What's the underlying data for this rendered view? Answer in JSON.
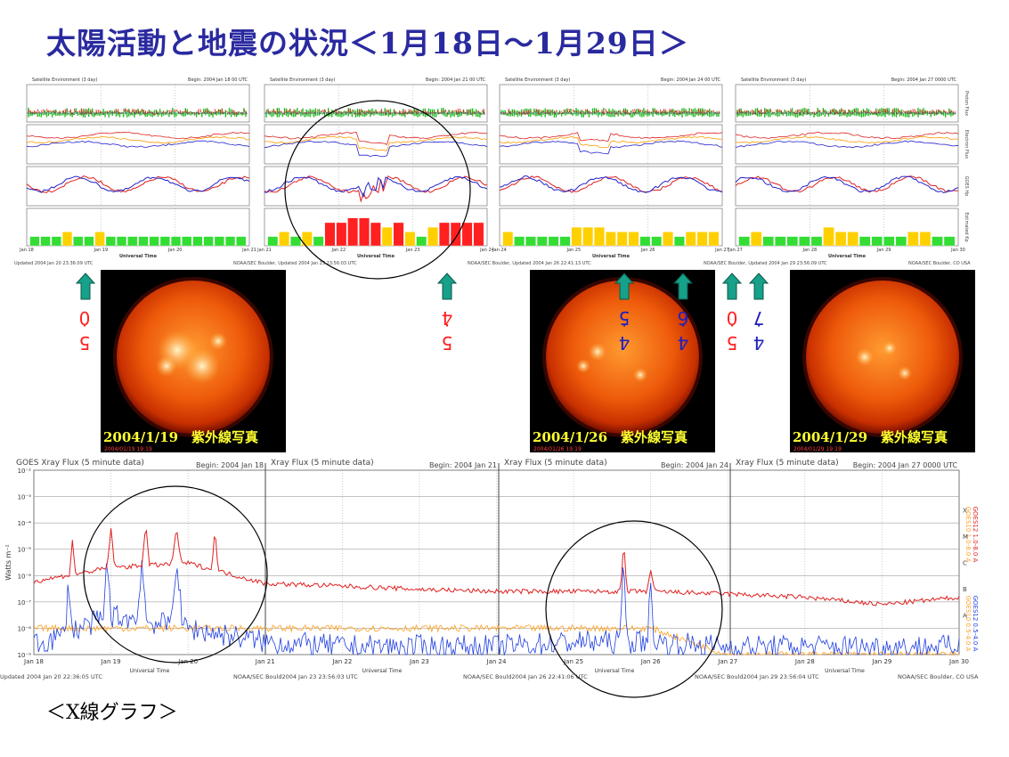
{
  "title": "太陽活動と地震の状況＜1月18日～1月29日＞",
  "xray_section_label": "＜X線グラフ＞",
  "sat_panels": [
    {
      "header_left": "Satellite Environment (3 day)",
      "header_right": "Begin: 2004 Jan 18 00 UTC",
      "days": [
        "Jan 18",
        "Jan 19",
        "Jan 20",
        "Jan 21"
      ],
      "kp": [
        2,
        2,
        2,
        3,
        2,
        2,
        3,
        2,
        2,
        2,
        2,
        2,
        2,
        2,
        2,
        2,
        2,
        2,
        2,
        2
      ]
    },
    {
      "header_left": "Satellite Environment (3 day)",
      "header_right": "Begin: 2004 Jan 21 00 UTC",
      "days": [
        "Jan 21",
        "Jan 22",
        "Jan 23",
        "Jan 24"
      ],
      "kp": [
        2,
        3,
        2,
        3,
        2,
        5,
        5,
        6,
        6,
        5,
        4,
        5,
        3,
        2,
        4,
        5,
        5,
        5,
        5
      ]
    },
    {
      "header_left": "Satellite Environment (3 day)",
      "header_right": "Begin: 2004 Jan 24 00 UTC",
      "days": [
        "Jan 24",
        "Jan 25",
        "Jan 26",
        "Jan 27"
      ],
      "kp": [
        3,
        2,
        2,
        2,
        2,
        2,
        4,
        4,
        4,
        3,
        3,
        3,
        2,
        2,
        3,
        2,
        3,
        3,
        3
      ]
    },
    {
      "header_left": "Satellite Environment (3 day)",
      "header_right": "Begin: 2004 Jan 27 0000 UTC",
      "days": [
        "Jan 27",
        "Jan 28",
        "Jan 29",
        "Jan 30"
      ],
      "kp": [
        2,
        3,
        2,
        2,
        2,
        2,
        2,
        4,
        3,
        3,
        2,
        2,
        2,
        2,
        3,
        3,
        2,
        2
      ]
    }
  ],
  "sat_axis_label": "Universal Time",
  "sat_right_labels": [
    "Proton Flux",
    "Electron Flux",
    "GOES Hp",
    "Estimated Kp"
  ],
  "sat_footers": [
    "Updated 2004 Jan 20 23:36:09 UTC",
    "NOAA/SEC Boulder, Updated 2004 Jan 23 23:56:03 UTC",
    "NOAA/SEC Boulder, Updated 2004 Jan 26 22:41:13 UTC",
    "NOAA/SEC Boulder, Updated 2004 Jan 29 23:56:09 UTC",
    "NOAA/SEC Boulder, CO USA"
  ],
  "colors": {
    "title": "#2a2aa0",
    "arrow": "#17a08a",
    "quake_red": "#ff2020",
    "quake_blue": "#2020c0",
    "kp_green": "#33dd33",
    "kp_yellow": "#ffd000",
    "kp_red": "#ff2020",
    "xray_long": "#e02020",
    "xray_short": "#2040e0",
    "goes10": "#ffa020"
  },
  "quakes": [
    {
      "magnitude_digits": [
        "5",
        "0"
      ],
      "color": "red"
    },
    {
      "magnitude_digits": [
        "5",
        "4"
      ],
      "color": "red"
    },
    {
      "magnitude_digits": [
        "4",
        "5"
      ],
      "color": "blue"
    },
    {
      "magnitude_digits": [
        "4",
        "6"
      ],
      "color": "blue"
    },
    {
      "magnitude_digits": [
        "5",
        "0"
      ],
      "color": "red"
    },
    {
      "magnitude_digits": [
        "4",
        "7"
      ],
      "color": "blue"
    }
  ],
  "sun_images": [
    {
      "caption": "2004/1/19　紫外線写真",
      "stamp": "2004/01/19 19:19"
    },
    {
      "caption": "2004/1/26　紫外線写真",
      "stamp": "2004/01/26 19:19"
    },
    {
      "caption": "2004/1/29　紫外線写真",
      "stamp": "2004/01/29 19:19"
    }
  ],
  "xray_panels": [
    {
      "header_left": "GOES Xray Flux (5 minute data)",
      "header_right": "Begin: 2004 Jan 18"
    },
    {
      "header_left": "Xray Flux (5 minute data)",
      "header_right": "Begin: 2004 Jan 21"
    },
    {
      "header_left": "Xray Flux (5 minute data)",
      "header_right": "Begin: 2004 Jan 24"
    },
    {
      "header_left": "Xray Flux (5 minute data)",
      "header_right": "Begin: 2004 Jan 27 0000 UTC"
    }
  ],
  "xray_footers": [
    "Updated 2004 Jan 20 22:36:05 UTC",
    "NOAA/SEC Bould2004 Jan 23 23:56:03 UTC",
    "NOAA/SEC Bould2004 Jan 26 22:41:06 UTC",
    "NOAA/SEC Bould2004 Jan 29 23:56:04 UTC",
    "NOAA/SEC Boulder, CO USA"
  ],
  "xray_right_legend": [
    "GOES10 1.0-8.0 A",
    "GOES12 1.0-8.0 A",
    "GOES10 0.5-4.0 A",
    "GOES12 0.5-4.0 A"
  ],
  "xray_right_classes": [
    "X",
    "M",
    "C",
    "B",
    "A"
  ],
  "chart_data": {
    "type": "line",
    "title": "GOES Xray Flux (5 minute data)",
    "xlabel": "Universal Time",
    "ylabel": "Watts m⁻²",
    "yscale": "log",
    "ylim": [
      1e-09,
      0.01
    ],
    "y_ticks": [
      "10⁻²",
      "10⁻³",
      "10⁻⁴",
      "10⁻⁵",
      "10⁻⁶",
      "10⁻⁷",
      "10⁻⁸",
      "10⁻⁹"
    ],
    "x_ticks": [
      "Jan 18",
      "Jan 19",
      "Jan 20",
      "Jan 21",
      "Jan 22",
      "Jan 23",
      "Jan 24",
      "Jan 25",
      "Jan 26",
      "Jan 27",
      "Jan 28",
      "Jan 29",
      "Jan 30"
    ],
    "grid": true,
    "series": [
      {
        "name": "GOES12 1.0-8.0 A",
        "x": [
          "Jan 18",
          "Jan 19",
          "Jan 20",
          "Jan 21",
          "Jan 22",
          "Jan 23",
          "Jan 24",
          "Jan 25",
          "Jan 26",
          "Jan 27",
          "Jan 28",
          "Jan 29",
          "Jan 30"
        ],
        "values": [
          6e-07,
          2e-06,
          3e-06,
          5e-07,
          4e-07,
          3e-07,
          2.5e-07,
          2.5e-07,
          2.5e-07,
          2e-07,
          1.5e-07,
          8e-08,
          1.5e-07
        ]
      },
      {
        "name": "GOES12 0.5-4.0 A",
        "x": [
          "Jan 18",
          "Jan 19",
          "Jan 20",
          "Jan 21",
          "Jan 22",
          "Jan 23",
          "Jan 24",
          "Jan 25",
          "Jan 26",
          "Jan 27",
          "Jan 28",
          "Jan 29",
          "Jan 30"
        ],
        "values": [
          2e-09,
          3e-08,
          1e-08,
          3e-09,
          2e-09,
          2e-09,
          2e-09,
          3e-09,
          3e-09,
          2e-09,
          2e-09,
          2e-09,
          2e-09
        ]
      },
      {
        "name": "GOES10 0.5-4.0 A",
        "x": [
          "Jan 18",
          "Jan 19",
          "Jan 20",
          "Jan 21",
          "Jan 22",
          "Jan 23",
          "Jan 24",
          "Jan 25",
          "Jan 26",
          "Jan 27",
          "Jan 28",
          "Jan 29",
          "Jan 30"
        ],
        "values": [
          1e-08,
          1e-08,
          1e-08,
          1e-08,
          1e-08,
          1e-08,
          1e-08,
          1e-08,
          1e-08,
          1e-09,
          1e-09,
          1e-09,
          1e-09
        ]
      }
    ]
  }
}
